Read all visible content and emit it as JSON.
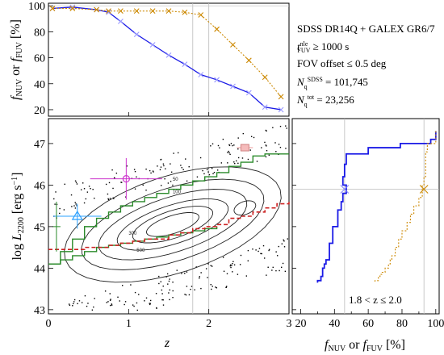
{
  "chart_data": [
    {
      "type": "line",
      "panel": "top",
      "xlim": [
        0,
        3
      ],
      "ylim": [
        15,
        102
      ],
      "yticks": [
        20,
        40,
        60,
        80,
        100
      ],
      "ylabel": "f_NUV or f_FUV [%]",
      "series": [
        {
          "name": "f_NUV",
          "color": "#1a1ae6",
          "marker": "x",
          "x": [
            0.05,
            0.3,
            0.6,
            0.75,
            0.9,
            1.1,
            1.3,
            1.5,
            1.7,
            1.9,
            2.1,
            2.3,
            2.5,
            2.7,
            2.9
          ],
          "y": [
            98,
            99,
            97,
            95,
            88,
            78,
            70,
            62,
            55,
            47,
            43,
            38,
            33,
            22,
            20
          ]
        },
        {
          "name": "f_FUV",
          "color": "#cc8800",
          "marker": "x",
          "x": [
            0.05,
            0.3,
            0.6,
            0.75,
            0.9,
            1.1,
            1.3,
            1.5,
            1.7,
            1.9,
            2.1,
            2.3,
            2.5,
            2.7,
            2.9
          ],
          "y": [
            98,
            98,
            97,
            96,
            96,
            96,
            96,
            96,
            95,
            93,
            82,
            70,
            58,
            45,
            30
          ]
        }
      ],
      "annotation": {
        "line1": "SDSS DR14Q + GALEX GR6/7",
        "line2": "tᶠᵁⱽ ≥ 1000 s",
        "line3": "FOV offset ≤ 0.5 deg",
        "line4": "Nq(SDSS) = 101,745",
        "line5": "Nq(tot) = 23,256"
      }
    },
    {
      "type": "scatter",
      "panel": "main",
      "xlabel": "z",
      "ylabel": "log L2200 [erg s⁻¹]",
      "xlim": [
        0,
        3
      ],
      "ylim": [
        42.9,
        47.6
      ],
      "xticks": [
        0,
        1,
        2,
        3
      ],
      "yticks": [
        43,
        44,
        45,
        46,
        47
      ],
      "contour_labels": [
        "50",
        "100",
        "300",
        "500"
      ],
      "green_step_upper": {
        "color": "#2a8a2a",
        "x": [
          0.0,
          0.15,
          0.3,
          0.45,
          0.6,
          0.75,
          0.9,
          1.05,
          1.2,
          1.35,
          1.5,
          1.65,
          1.8,
          1.95,
          2.1,
          2.25,
          2.4,
          2.55,
          2.7,
          2.85,
          3.0
        ],
        "y": [
          44.1,
          44.4,
          44.7,
          45.0,
          45.2,
          45.35,
          45.5,
          45.6,
          45.7,
          45.8,
          45.9,
          46.0,
          46.1,
          46.2,
          46.3,
          46.45,
          46.55,
          46.7,
          46.75,
          46.75,
          46.75
        ]
      },
      "green_step_lower": {
        "color": "#2a8a2a",
        "x": [
          0.0,
          0.15,
          0.3,
          0.45,
          0.6,
          0.75,
          0.9,
          1.05,
          1.2,
          1.35,
          1.5,
          1.65,
          1.8,
          1.95,
          2.1
        ],
        "y": [
          44.1,
          44.2,
          44.3,
          44.4,
          44.5,
          44.55,
          44.6,
          44.65,
          44.7,
          44.75,
          44.8,
          44.85,
          44.9,
          44.95,
          45.0
        ]
      },
      "red_dashed": {
        "color": "#cc2222",
        "x": [
          0.0,
          0.15,
          0.3,
          0.45,
          0.6,
          0.75,
          0.9,
          1.05,
          1.2,
          1.35,
          1.5,
          1.65,
          1.8,
          1.95,
          2.1,
          2.25,
          2.4,
          2.55,
          2.7,
          2.85,
          3.0
        ],
        "y": [
          44.45,
          44.45,
          44.45,
          44.5,
          44.5,
          44.55,
          44.6,
          44.65,
          44.7,
          44.7,
          44.8,
          44.85,
          44.95,
          45.0,
          45.05,
          45.2,
          45.25,
          45.35,
          45.45,
          45.55,
          45.6
        ]
      },
      "points_with_errors": [
        {
          "name": "blue-triangle",
          "color": "#2aa0ff",
          "x": 0.36,
          "y": 45.25,
          "xerr": 0.3,
          "yerr": 0.3
        },
        {
          "name": "green-errorbar",
          "color": "#2a8a2a",
          "x": 0.1,
          "y": 45.0,
          "xerr": 0.05,
          "yerr": 0.6
        },
        {
          "name": "magenta-diamond",
          "color": "#cc33cc",
          "x": 0.97,
          "y": 46.15,
          "xerr": 0.45,
          "yerr": 0.5
        },
        {
          "name": "pink-square",
          "color": "#ee9999",
          "x": 2.45,
          "y": 46.9,
          "xerr": 0.1,
          "yerr": 0.07
        }
      ]
    },
    {
      "type": "line",
      "panel": "right",
      "xlabel": "f_NUV or f_FUV [%]",
      "xlim": [
        15,
        102
      ],
      "xticks": [
        20,
        30,
        40,
        50,
        60,
        70,
        80,
        90,
        100
      ],
      "xticklabels": [
        "20",
        "",
        "40",
        "",
        "60",
        "",
        "80",
        "",
        "100"
      ],
      "ylim": [
        42.9,
        47.6
      ],
      "label": "1.8 < z ≤ 2.0",
      "series": [
        {
          "name": "f_NUV",
          "color": "#1a1ae6",
          "x": [
            100,
            100,
            97,
            79,
            60,
            47,
            46,
            45,
            47,
            45,
            44,
            42,
            42,
            39,
            39,
            37,
            37,
            35,
            34,
            33,
            32,
            30,
            30
          ],
          "y": [
            47.3,
            47.1,
            47.1,
            47.0,
            46.9,
            46.75,
            46.5,
            46.2,
            46.0,
            45.8,
            45.6,
            45.4,
            45.2,
            45.0,
            44.8,
            44.6,
            44.4,
            44.2,
            44.1,
            44.0,
            43.8,
            43.7,
            43.65
          ]
        },
        {
          "name": "f_FUV",
          "color": "#cc8800",
          "x": [
            100,
            100,
            95,
            94,
            94,
            93,
            92,
            90,
            87,
            85,
            83,
            80,
            78,
            76,
            74,
            73,
            72,
            70,
            68,
            67,
            66,
            64,
            64
          ],
          "y": [
            47.3,
            47.1,
            47.0,
            46.8,
            46.5,
            46.2,
            46.0,
            45.7,
            45.5,
            45.3,
            45.1,
            44.9,
            44.7,
            44.5,
            44.3,
            44.2,
            44.1,
            44.0,
            43.9,
            43.85,
            43.8,
            43.7,
            43.65
          ]
        }
      ],
      "markers": [
        {
          "name": "nuv-x",
          "color": "#8888ff",
          "x": 46,
          "y": 45.9
        },
        {
          "name": "fuv-x",
          "color": "#cc8800",
          "x": 93,
          "y": 45.9
        }
      ]
    }
  ]
}
